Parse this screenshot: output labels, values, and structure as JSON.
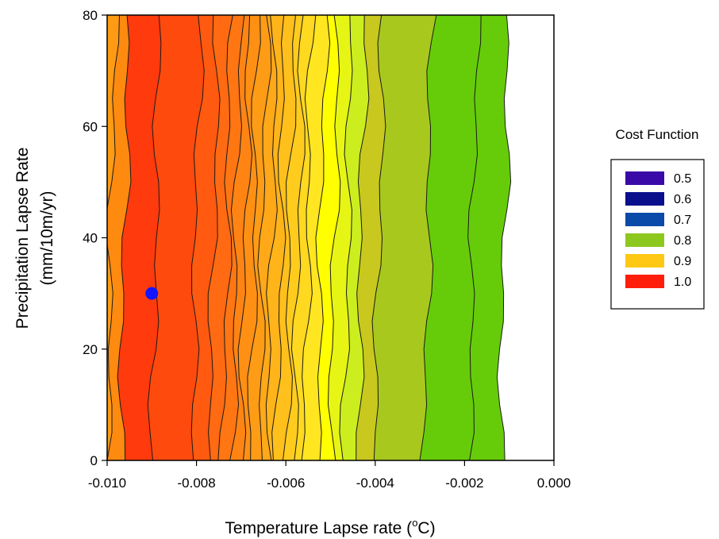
{
  "chart_data": {
    "type": "contour",
    "xlabel": "Temperature Lapse rate (",
    "xlabel_unit_sup": "o",
    "xlabel_unit": "C)",
    "ylabel_line1": "Precipitation Lapse Rate",
    "ylabel_line2": "(mm/10m/yr)",
    "xlim": [
      -0.01,
      0.0
    ],
    "ylim": [
      0,
      80
    ],
    "x_ticks": [
      -0.01,
      -0.008,
      -0.006,
      -0.004,
      -0.002,
      0.0
    ],
    "x_tick_labels": [
      "-0.010",
      "-0.008",
      "-0.006",
      "-0.004",
      "-0.002",
      "0.000"
    ],
    "y_ticks": [
      0,
      20,
      40,
      60,
      80
    ],
    "y_tick_labels": [
      "0",
      "20",
      "40",
      "60",
      "80"
    ],
    "grid": false,
    "legend": {
      "title": "Cost Function",
      "position": "right",
      "entries": [
        {
          "label": "0.5",
          "color": "#3a0aa8"
        },
        {
          "label": "0.6",
          "color": "#0a0f8c"
        },
        {
          "label": "0.7",
          "color": "#0a4aa8"
        },
        {
          "label": "0.8",
          "color": "#8cc81e"
        },
        {
          "label": "0.9",
          "color": "#ffc814"
        },
        {
          "label": "1.0",
          "color": "#ff1e0a"
        }
      ]
    },
    "contour_levels_x": [
      -0.01,
      -0.0097,
      -0.009,
      -0.0081,
      -0.0077,
      -0.0074,
      -0.0072,
      -0.007,
      -0.0068,
      -0.0066,
      -0.0064,
      -0.0062,
      -0.006,
      -0.0058,
      -0.0056,
      -0.0053,
      -0.005,
      -0.0047,
      -0.0044,
      -0.004,
      -0.0029,
      -0.0019,
      -0.0012
    ],
    "contour_bands": [
      {
        "fill": "#ff9a14"
      },
      {
        "fill": "#ff8a10"
      },
      {
        "fill": "#ff3a0c"
      },
      {
        "fill": "#ff4a0e"
      },
      {
        "fill": "#ff5a10"
      },
      {
        "fill": "#ff6a12"
      },
      {
        "fill": "#ff7612"
      },
      {
        "fill": "#ff8414"
      },
      {
        "fill": "#ff9014"
      },
      {
        "fill": "#ff9c16"
      },
      {
        "fill": "#ffa818"
      },
      {
        "fill": "#ffb41a"
      },
      {
        "fill": "#ffc01c"
      },
      {
        "fill": "#ffcc1e"
      },
      {
        "fill": "#ffd820"
      },
      {
        "fill": "#ffe620"
      },
      {
        "fill": "#ffff00"
      },
      {
        "fill": "#e6f514"
      },
      {
        "fill": "#ccee1e"
      },
      {
        "fill": "#c8c81e"
      },
      {
        "fill": "#a8c81e"
      },
      {
        "fill": "#66cc0a"
      }
    ],
    "optimum_point": {
      "x": -0.009,
      "y": 30,
      "color": "#1414ff"
    }
  }
}
